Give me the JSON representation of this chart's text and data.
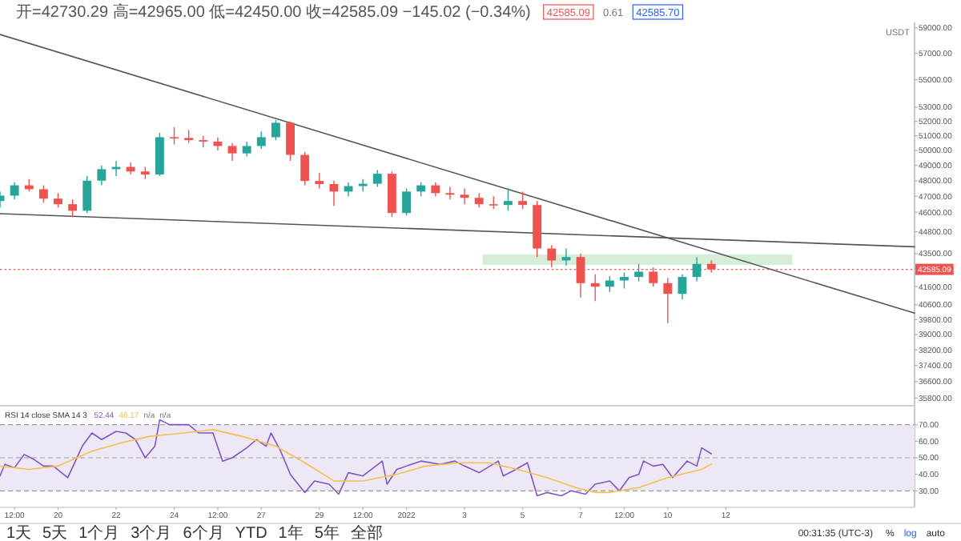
{
  "chart_data": [
    {
      "type": "candlestick",
      "title": "开=42730.29 高=42965.00 低=42450.00 收=42585.09 −145.02 (−0.34%)",
      "x": [
        "2021-12-18T00:00",
        "2021-12-18T12:00",
        "2021-12-19T00:00",
        "2021-12-19T12:00",
        "2021-12-20T00:00",
        "2021-12-20T12:00",
        "2021-12-21T00:00",
        "2021-12-21T12:00",
        "2021-12-22T00:00",
        "2021-12-22T12:00",
        "2021-12-23T00:00",
        "2021-12-23T12:00",
        "2021-12-24T00:00",
        "2021-12-24T12:00",
        "2021-12-25T00:00",
        "2021-12-25T12:00",
        "2021-12-26T00:00",
        "2021-12-26T12:00",
        "2021-12-27T00:00",
        "2021-12-27T12:00",
        "2021-12-28T00:00",
        "2021-12-28T12:00",
        "2021-12-29T00:00",
        "2021-12-29T12:00",
        "2021-12-30T00:00",
        "2021-12-30T12:00",
        "2021-12-31T00:00",
        "2021-12-31T12:00",
        "2022-01-01T00:00",
        "2022-01-01T12:00",
        "2022-01-02T00:00",
        "2022-01-02T12:00",
        "2022-01-03T00:00",
        "2022-01-03T12:00",
        "2022-01-04T00:00",
        "2022-01-04T12:00",
        "2022-01-05T00:00",
        "2022-01-05T12:00",
        "2022-01-06T00:00",
        "2022-01-06T12:00",
        "2022-01-07T00:00",
        "2022-01-07T12:00",
        "2022-01-08T00:00",
        "2022-01-08T12:00",
        "2022-01-09T00:00",
        "2022-01-09T12:00",
        "2022-01-10T00:00",
        "2022-01-10T12:00",
        "2022-01-11T00:00",
        "2022-01-11T12:00"
      ],
      "ohlc": [
        [
          46700,
          47300,
          46300,
          47040
        ],
        [
          47040,
          47900,
          46800,
          47700
        ],
        [
          47700,
          48100,
          47300,
          47450
        ],
        [
          47450,
          47700,
          46600,
          46850
        ],
        [
          46850,
          47200,
          46300,
          46500
        ],
        [
          46500,
          46800,
          45700,
          46090
        ],
        [
          46090,
          48300,
          45950,
          48000
        ],
        [
          48000,
          49000,
          47700,
          48750
        ],
        [
          48750,
          49300,
          48300,
          48900
        ],
        [
          48900,
          49200,
          48400,
          48600
        ],
        [
          48600,
          48900,
          48100,
          48400
        ],
        [
          48400,
          51200,
          48300,
          50900
        ],
        [
          50900,
          51600,
          50400,
          50850
        ],
        [
          50850,
          51400,
          50500,
          50700
        ],
        [
          50700,
          51000,
          50200,
          50600
        ],
        [
          50600,
          50900,
          50000,
          50300
        ],
        [
          50300,
          50500,
          49300,
          49800
        ],
        [
          49800,
          50600,
          49600,
          50300
        ],
        [
          50300,
          51300,
          50100,
          50900
        ],
        [
          50900,
          52100,
          50700,
          51900
        ],
        [
          51900,
          52000,
          49300,
          49700
        ],
        [
          49700,
          49900,
          47700,
          47980
        ],
        [
          47980,
          48500,
          47500,
          47780
        ],
        [
          47780,
          48000,
          46400,
          47300
        ],
        [
          47300,
          47900,
          47000,
          47650
        ],
        [
          47650,
          48100,
          47300,
          47800
        ],
        [
          47800,
          48700,
          47600,
          48450
        ],
        [
          48450,
          48600,
          45700,
          45950
        ],
        [
          45950,
          47500,
          45800,
          47300
        ],
        [
          47300,
          47900,
          47000,
          47700
        ],
        [
          47700,
          47900,
          47000,
          47200
        ],
        [
          47200,
          47600,
          46800,
          47100
        ],
        [
          47100,
          47500,
          46500,
          46900
        ],
        [
          46900,
          47200,
          46300,
          46500
        ],
        [
          46500,
          47000,
          46200,
          46450
        ],
        [
          46450,
          47500,
          46100,
          46700
        ],
        [
          46700,
          47300,
          46200,
          46450
        ],
        [
          46450,
          46700,
          43300,
          43800
        ],
        [
          43800,
          44000,
          42700,
          43100
        ],
        [
          43100,
          43800,
          42800,
          43300
        ],
        [
          43300,
          43500,
          41000,
          41800
        ],
        [
          41800,
          42300,
          40800,
          41600
        ],
        [
          41600,
          42200,
          41300,
          41950
        ],
        [
          41950,
          42400,
          41500,
          42150
        ],
        [
          42150,
          42900,
          41900,
          42450
        ],
        [
          42450,
          42700,
          41600,
          41800
        ],
        [
          41800,
          42100,
          39600,
          41200
        ],
        [
          41200,
          42300,
          40900,
          42150
        ],
        [
          42150,
          43300,
          41900,
          42900
        ],
        [
          42900,
          43100,
          42400,
          42585.09
        ]
      ],
      "colors": [
        "#26a69a",
        "#26a69a",
        "#ef5350",
        "#ef5350",
        "#ef5350",
        "#ef5350",
        "#26a69a",
        "#26a69a",
        "#26a69a",
        "#ef5350",
        "#ef5350",
        "#26a69a",
        "#ef5350",
        "#ef5350",
        "#ef5350",
        "#ef5350",
        "#ef5350",
        "#26a69a",
        "#26a69a",
        "#26a69a",
        "#ef5350",
        "#ef5350",
        "#ef5350",
        "#ef5350",
        "#26a69a",
        "#26a69a",
        "#26a69a",
        "#ef5350",
        "#26a69a",
        "#26a69a",
        "#ef5350",
        "#ef5350",
        "#ef5350",
        "#ef5350",
        "#ef5350",
        "#26a69a",
        "#ef5350",
        "#ef5350",
        "#ef5350",
        "#26a69a",
        "#ef5350",
        "#ef5350",
        "#26a69a",
        "#26a69a",
        "#26a69a",
        "#ef5350",
        "#ef5350",
        "#26a69a",
        "#26a69a",
        "#ef5350"
      ],
      "series": [
        {
          "type": "line",
          "x": [
            "2022-01-03T15:00",
            "2022-01-14T07:00"
          ],
          "values": [
            null,
            null
          ],
          "lower": [
            42840,
            42840
          ],
          "upper": [
            43460,
            43460
          ],
          "color": "#d6eed8"
        },
        {
          "type": "line",
          "x": [
            "2021-12-18T00:00",
            "2022-01-18T12:00"
          ],
          "values": [
            58470,
            40140
          ],
          "color": "#555555"
        },
        {
          "type": "line",
          "x": [
            "2021-12-18T00:00",
            "2022-01-18T12:00"
          ],
          "values": [
            45910,
            43900
          ],
          "color": "#555555"
        }
      ],
      "ref_lines": [
        {
          "axis": "y",
          "value": 42585.09,
          "label": "42585.09",
          "color": "#ef5350",
          "line_style": "dotted"
        }
      ],
      "xlim": [
        "2021-12-18T00:00",
        "2022-01-18T12:00"
      ],
      "ylim": [
        35540,
        59430
      ],
      "log": true,
      "yticks": [
        {
          "value": 59000,
          "label": "59000.00"
        },
        {
          "value": 57000,
          "label": "57000.00"
        },
        {
          "value": 55000,
          "label": "55000.00"
        },
        {
          "value": 53000,
          "label": "53000.00"
        },
        {
          "value": 52000,
          "label": "52000.00"
        },
        {
          "value": 51000,
          "label": "51000.00"
        },
        {
          "value": 50000,
          "label": "50000.00"
        },
        {
          "value": 49000,
          "label": "49000.00"
        },
        {
          "value": 48000,
          "label": "48000.00"
        },
        {
          "value": 47000,
          "label": "47000.00"
        },
        {
          "value": 46000,
          "label": "46000.00"
        },
        {
          "value": 44800,
          "label": "44800.00"
        },
        {
          "value": 43500,
          "label": "43500.00"
        },
        {
          "value": 41600,
          "label": "41600.00"
        },
        {
          "value": 40600,
          "label": "40600.00"
        },
        {
          "value": 39800,
          "label": "39800.00"
        },
        {
          "value": 39000,
          "label": "39000.00"
        },
        {
          "value": 38200,
          "label": "38200.00"
        },
        {
          "value": 37400,
          "label": "37400.00"
        },
        {
          "value": 36600,
          "label": "36600.00"
        },
        {
          "value": 35800,
          "label": "35800.00"
        }
      ],
      "tick_labels": "y",
      "annotations": [
        "42585.09",
        "0.61",
        "42585.70",
        "USDT",
        "1天",
        "5天",
        "1个月",
        "3个月",
        "6个月",
        "YTD",
        "1年",
        "5年",
        "全部",
        "00:31:35 (UTC-3)",
        "%",
        "log",
        "auto"
      ]
    },
    {
      "type": "line",
      "title": "RSI 14 close SMA 14 3",
      "legend": "top left",
      "series": [
        {
          "name": "52.44",
          "color": "#7e57c2",
          "x": [
            "2021-12-18T00:00",
            "2021-12-18T04:00",
            "2021-12-18T12:00",
            "2021-12-18T20:00",
            "2021-12-19T04:00",
            "2021-12-19T12:00",
            "2021-12-19T20:00",
            "2021-12-20T08:00",
            "2021-12-20T20:00",
            "2021-12-21T04:00",
            "2021-12-21T12:00",
            "2021-12-22T00:00",
            "2021-12-22T08:00",
            "2021-12-22T16:00",
            "2021-12-23T00:00",
            "2021-12-23T08:00",
            "2021-12-23T12:00",
            "2021-12-23T20:00",
            "2021-12-24T12:00",
            "2021-12-24T20:00",
            "2021-12-25T08:00",
            "2021-12-25T16:00",
            "2021-12-26T00:00",
            "2021-12-26T12:00",
            "2021-12-26T20:00",
            "2021-12-27T04:00",
            "2021-12-27T08:00",
            "2021-12-27T16:00",
            "2021-12-28T00:00",
            "2021-12-28T12:00",
            "2021-12-28T20:00",
            "2021-12-29T08:00",
            "2021-12-29T16:00",
            "2021-12-30T00:00",
            "2021-12-30T12:00",
            "2021-12-31T04:00",
            "2021-12-31T08:00",
            "2021-12-31T16:00",
            "2022-01-01T12:00",
            "2022-01-02T04:00",
            "2022-01-02T16:00",
            "2022-01-03T00:00",
            "2022-01-03T12:00",
            "2022-01-04T04:00",
            "2022-01-04T08:00",
            "2022-01-04T16:00",
            "2022-01-05T04:00",
            "2022-01-05T12:00",
            "2022-01-05T20:00",
            "2022-01-06T08:00",
            "2022-01-06T16:00",
            "2022-01-07T04:00",
            "2022-01-07T12:00",
            "2022-01-08T00:00",
            "2022-01-08T08:00",
            "2022-01-08T16:00",
            "2022-01-09T00:00",
            "2022-01-09T04:00",
            "2022-01-09T12:00",
            "2022-01-09T20:00",
            "2022-01-10T04:00",
            "2022-01-10T16:00",
            "2022-01-11T00:00",
            "2022-01-11T04:00",
            "2022-01-11T12:00"
          ],
          "values": [
            39,
            46,
            44,
            52,
            49,
            45,
            45,
            38,
            57,
            65,
            61,
            66,
            65,
            61,
            50,
            57,
            73,
            70,
            70,
            65,
            65,
            48,
            50,
            56,
            61,
            57,
            65,
            54,
            40,
            29,
            36,
            34,
            28,
            41,
            39,
            48,
            34,
            43,
            48,
            46,
            48,
            45,
            41,
            48,
            39,
            42,
            47,
            27,
            29,
            27,
            30,
            28,
            34,
            36,
            30,
            38,
            40,
            48,
            45,
            46,
            38,
            48,
            45,
            56,
            52.44
          ]
        },
        {
          "name": "46.17",
          "color": "#f2c14e",
          "x": [
            "2021-12-18T00:00",
            "2021-12-19T00:00",
            "2021-12-20T00:00",
            "2021-12-21T04:00",
            "2021-12-22T04:00",
            "2021-12-23T04:00",
            "2021-12-24T08:00",
            "2021-12-25T08:00",
            "2021-12-26T08:00",
            "2021-12-27T12:00",
            "2021-12-28T12:00",
            "2021-12-29T12:00",
            "2021-12-30T12:00",
            "2021-12-31T16:00",
            "2022-01-01T16:00",
            "2022-01-02T20:00",
            "2022-01-03T20:00",
            "2022-01-04T20:00",
            "2022-01-05T20:00",
            "2022-01-06T20:00",
            "2022-01-07T12:00",
            "2022-01-08T00:00",
            "2022-01-09T00:00",
            "2022-01-10T00:00",
            "2022-01-11T04:00",
            "2022-01-11T12:00"
          ],
          "values": [
            45,
            43,
            45,
            54,
            59,
            63,
            65,
            67,
            63,
            57,
            47,
            36,
            36,
            40,
            45,
            47,
            47,
            43,
            38,
            32,
            29,
            29,
            32,
            38,
            43,
            46.17
          ]
        }
      ],
      "bands": [
        {
          "axis": "y",
          "from": 30,
          "to": 70,
          "color": "#ede7f6"
        }
      ],
      "ref_lines": [
        {
          "axis": "y",
          "value": 70,
          "color": "#9e9e9e",
          "line_style": "dashed"
        },
        {
          "axis": "y",
          "value": 50,
          "color": "#9e9e9e",
          "line_style": "dashed"
        },
        {
          "axis": "y",
          "value": 30,
          "color": "#9e9e9e",
          "line_style": "dashed"
        }
      ],
      "annotations": [
        "n/a",
        "n/a"
      ],
      "xlim": [
        "2021-12-18T00:00",
        "2022-01-18T12:00"
      ],
      "xticks": [
        {
          "value": "2021-12-18T12:00",
          "label": "12:00"
        },
        {
          "value": "2021-12-20",
          "label": "20"
        },
        {
          "value": "2021-12-22",
          "label": "22"
        },
        {
          "value": "2021-12-24",
          "label": "24"
        },
        {
          "value": "2021-12-25T12:00",
          "label": "12:00"
        },
        {
          "value": "2021-12-27",
          "label": "27"
        },
        {
          "value": "2021-12-29",
          "label": "29"
        },
        {
          "value": "2021-12-30T12:00",
          "label": "12:00"
        },
        {
          "value": "2022-01-01",
          "label": "2022"
        },
        {
          "value": "2022-01-03",
          "label": "3"
        },
        {
          "value": "2022-01-05",
          "label": "5"
        },
        {
          "value": "2022-01-07",
          "label": "7"
        },
        {
          "value": "2022-01-08T12:00",
          "label": "12:00"
        },
        {
          "value": "2022-01-10",
          "label": "10"
        },
        {
          "value": "2022-01-12",
          "label": "12"
        }
      ],
      "ylim": [
        20,
        80
      ],
      "yticks": [
        {
          "value": 30,
          "label": "30.00"
        },
        {
          "value": 40,
          "label": "40.00"
        },
        {
          "value": 50,
          "label": "50.00"
        },
        {
          "value": 60,
          "label": "60.00"
        },
        {
          "value": 70,
          "label": "70.00"
        }
      ]
    }
  ]
}
